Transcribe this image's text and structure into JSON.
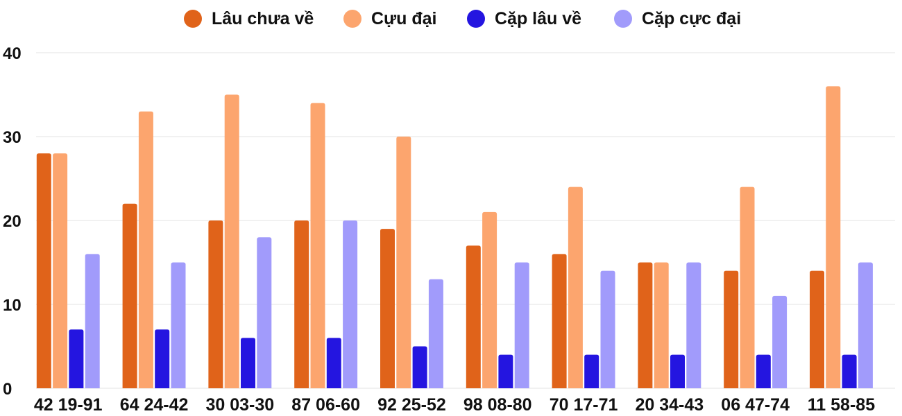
{
  "chart_data": {
    "type": "bar",
    "title": "",
    "xlabel": "",
    "ylabel": "",
    "ylim": [
      0,
      40
    ],
    "yticks": [
      0,
      10,
      20,
      30,
      40
    ],
    "grid": true,
    "legend_position": "top-center",
    "categories": [
      "42 19-91",
      "64 24-42",
      "30 03-30",
      "87 06-60",
      "92 25-52",
      "98 08-80",
      "70 17-71",
      "20 34-43",
      "06 47-74",
      "11 58-85"
    ],
    "series": [
      {
        "name": "Lâu chưa về",
        "color": "#e0631a",
        "values": [
          28,
          22,
          20,
          20,
          19,
          17,
          16,
          15,
          14,
          14
        ]
      },
      {
        "name": "Cựu đại",
        "color": "#fca56e",
        "values": [
          28,
          33,
          35,
          34,
          30,
          21,
          24,
          15,
          24,
          36
        ]
      },
      {
        "name": "Cặp lâu về",
        "color": "#2415e0",
        "values": [
          7,
          7,
          6,
          6,
          5,
          4,
          4,
          4,
          4,
          4
        ]
      },
      {
        "name": "Cặp cực đại",
        "color": "#a19bfb",
        "values": [
          16,
          15,
          18,
          20,
          13,
          15,
          14,
          15,
          11,
          15
        ]
      }
    ]
  }
}
